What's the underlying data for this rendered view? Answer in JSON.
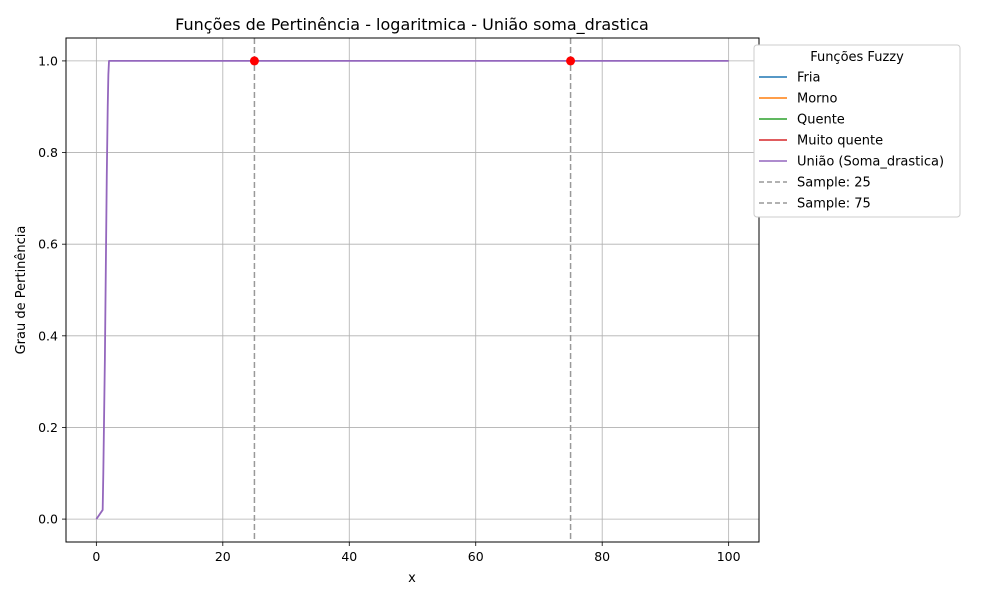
{
  "chart_data": {
    "type": "line",
    "title": "Funções de Pertinência - logaritmica - União soma_drastica",
    "xlabel": "x",
    "ylabel": "Grau de Pertinência",
    "xlim": [
      -4.8,
      104.8
    ],
    "ylim": [
      -0.05,
      1.05
    ],
    "xticks": [
      0,
      20,
      40,
      60,
      80,
      100
    ],
    "yticks": [
      0.0,
      0.2,
      0.4,
      0.6,
      0.8,
      1.0
    ],
    "grid": true,
    "legend": {
      "title": "Funções Fuzzy",
      "placement": "outside-top-right",
      "entries": [
        {
          "label": "Fria",
          "color": "#1f77b4",
          "style": "solid"
        },
        {
          "label": "Morno",
          "color": "#ff7f0e",
          "style": "solid"
        },
        {
          "label": "Quente",
          "color": "#2ca02c",
          "style": "solid"
        },
        {
          "label": "Muito quente",
          "color": "#d62728",
          "style": "solid"
        },
        {
          "label": "União (Soma_drastica)",
          "color": "#9467bd",
          "style": "solid"
        },
        {
          "label": "Sample: 25",
          "color": "#999999",
          "style": "dashed"
        },
        {
          "label": "Sample: 75",
          "color": "#999999",
          "style": "dashed"
        }
      ]
    },
    "series": [
      {
        "name": "União (Soma_drastica)",
        "color": "#9467bd",
        "x": [
          0,
          1,
          1.1,
          1.2,
          1.35,
          1.5,
          1.65,
          1.8,
          1.9,
          2.0,
          100
        ],
        "y": [
          0,
          0.02,
          0.1,
          0.2,
          0.35,
          0.55,
          0.75,
          0.9,
          0.97,
          1.0,
          1.0
        ]
      }
    ],
    "samples": [
      {
        "x": 25,
        "y": 1.0
      },
      {
        "x": 75,
        "y": 1.0
      }
    ],
    "sample_line_color": "#999999",
    "sample_point_color": "#ff0000"
  }
}
